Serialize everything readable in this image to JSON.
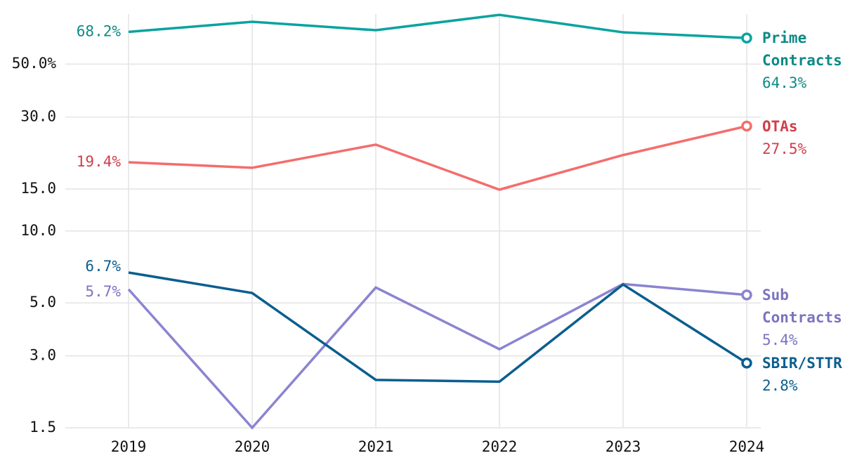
{
  "chart_data": {
    "type": "line",
    "categories": [
      "2019",
      "2020",
      "2021",
      "2022",
      "2023",
      "2024"
    ],
    "log_scale": true,
    "grid": true,
    "ylim": [
      1.5,
      81
    ],
    "yticks": [
      1.5,
      {
        "value": 3,
        "label": "3.0"
      },
      {
        "value": 5,
        "label": "5.0"
      },
      {
        "value": 10,
        "label": "10.0"
      },
      {
        "value": 15,
        "label": "15.0"
      },
      {
        "value": 30,
        "label": "30.0"
      },
      {
        "value": 50,
        "label": "50.0%"
      }
    ],
    "series": [
      {
        "name": "Prime Contracts",
        "color": "#0aa39f",
        "label_color": "#0d8a86",
        "values": [
          68.2,
          75.2,
          69.3,
          80.4,
          67.9,
          64.3
        ],
        "value_labels": [
          "68.2%",
          null,
          null,
          null,
          null,
          "64.3%"
        ]
      },
      {
        "name": "OTAs",
        "color": "#f46d6d",
        "label_color": "#cf3f4a",
        "values": [
          19.4,
          18.4,
          23.0,
          14.9,
          20.8,
          27.5
        ],
        "value_labels": [
          "19.4%",
          null,
          null,
          null,
          null,
          "27.5%"
        ]
      },
      {
        "name": "Sub Contracts",
        "color": "#8a84d0",
        "label_color": "#7a74c0",
        "values": [
          5.7,
          1.5,
          5.8,
          3.2,
          6.0,
          5.4
        ],
        "value_labels": [
          "5.7%",
          null,
          null,
          null,
          null,
          "5.4%"
        ]
      },
      {
        "name": "SBIR/STTR",
        "color": "#0b5e8f",
        "label_color": "#0b5e8f",
        "values": [
          6.7,
          5.5,
          2.38,
          2.34,
          5.97,
          2.8
        ],
        "value_labels": [
          "6.7%",
          null,
          null,
          null,
          null,
          "2.8%"
        ]
      }
    ]
  }
}
